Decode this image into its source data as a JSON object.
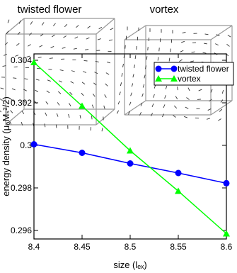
{
  "panels": {
    "labels": [
      "twisted flower",
      "vortex"
    ]
  },
  "chart_data": {
    "type": "line",
    "xlabel": "size (lₑₓ)",
    "ylabel": "energy density (μ₀Mₛ²/2)",
    "x": [
      8.4,
      8.45,
      8.5,
      8.55,
      8.6
    ],
    "series": [
      {
        "name": "twisted flower",
        "color": "#0000ff",
        "marker": "circle",
        "values": [
          0.30005,
          0.29965,
          0.29915,
          0.2987,
          0.29822
        ]
      },
      {
        "name": "vortex",
        "color": "#00ff00",
        "marker": "triangle",
        "values": [
          0.3039,
          0.30185,
          0.29975,
          0.29785,
          0.29585
        ]
      }
    ],
    "xlim": [
      8.4,
      8.6
    ],
    "xticks": [
      8.4,
      8.45,
      8.5,
      8.55,
      8.6
    ],
    "ylim": [
      0.2956,
      0.3043
    ],
    "yticks": [
      0.296,
      0.298,
      0.3,
      0.302,
      0.304
    ],
    "legend": "upper-right"
  }
}
